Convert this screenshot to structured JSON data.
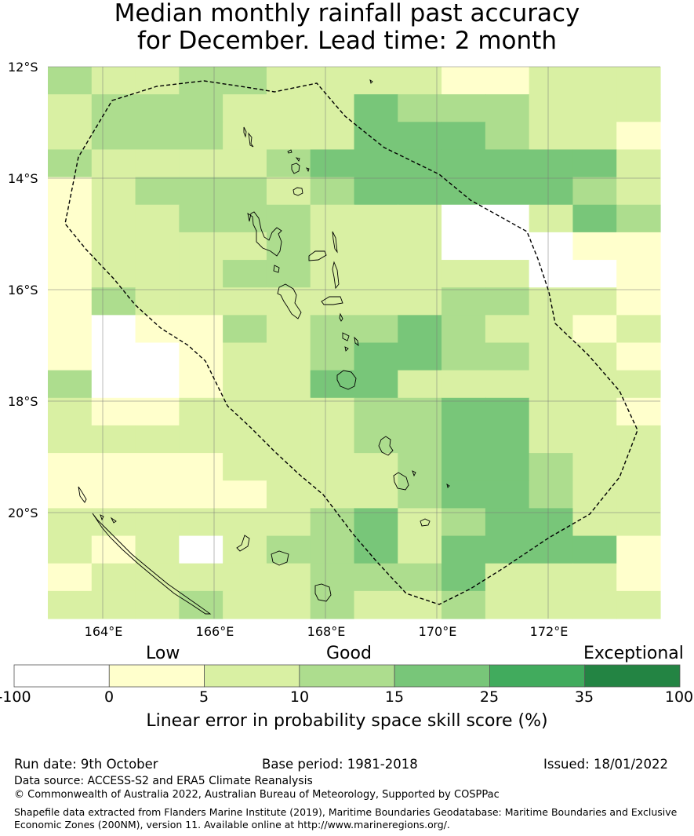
{
  "title_line1": "Median monthly rainfall past accuracy",
  "title_line2": "for December. Lead time: 2 month",
  "lat_labels": [
    "12°S",
    "14°S",
    "16°S",
    "18°S",
    "20°S"
  ],
  "lon_labels": [
    "164°E",
    "166°E",
    "168°E",
    "170°E",
    "172°E"
  ],
  "colorbar": {
    "categories": [
      "Low",
      "Good",
      "Exceptional"
    ],
    "ticks": [
      "-100",
      "0",
      "5",
      "10",
      "15",
      "25",
      "35",
      "100"
    ],
    "colors": [
      "#ffffff",
      "#ffffcc",
      "#d9f0a3",
      "#addd8e",
      "#78c679",
      "#41ab5d",
      "#238443"
    ],
    "title": "Linear error in probability space skill score (%)"
  },
  "footer": {
    "run_date": "Run date: 9th October",
    "base_period": "Base period: 1981-2018",
    "issued": "Issued: 18/01/2022",
    "data_source": "Data source: ACCESS-S2 and ERA5 Climate Reanalysis",
    "copyright": "© Commonwealth of Australia 2022, Australian Bureau of Meteorology, Supported by COSPPac",
    "shapefile_line1": "Shapefile data extracted from Flanders Marine Institute (2019), Maritime Boundaries Geodatabase: Maritime Boundaries and Exclusive",
    "shapefile_line2": "Economic Zones (200NM), version 11. Available online at http://www.marineregions.org/."
  },
  "grid": {
    "lon_range": [
      163,
      174
    ],
    "lat_range": [
      -12,
      -22
    ],
    "rows": [
      "32233222211222",
      "23332224333222",
      "23332224443221",
      "32222344444442",
      "12333234444432",
      "12233322200243",
      "12222322200011",
      "12223322222001",
      "13222222233221",
      "10113233432212",
      "10012234433221",
      "30012244222222",
      "21122223344221",
      "22222223344222",
      "11112222344322",
      "11111222344322",
      "22222234234422",
      "21202334244441",
      "12222233342221",
      "22232232232222"
    ]
  }
}
